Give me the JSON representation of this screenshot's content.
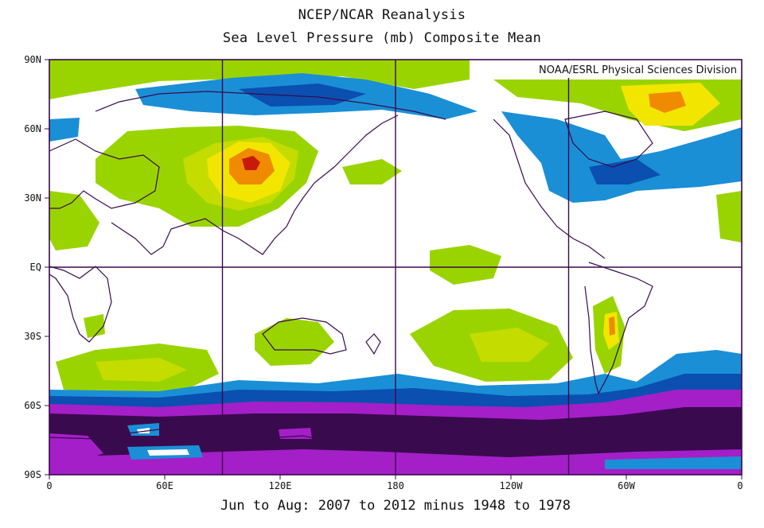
{
  "header": {
    "title": "NCEP/NCAR Reanalysis",
    "subtitle": "Sea Level Pressure (mb) Composite Mean"
  },
  "credit": "NOAA/ESRL Physical Sciences Division",
  "footer": "Jun to Aug: 2007 to 2012 minus 1948 to 1978",
  "axes": {
    "lat_ticks": [
      "90N",
      "60N",
      "30N",
      "EQ",
      "30S",
      "60S",
      "90S"
    ],
    "lon_ticks": [
      "0",
      "60E",
      "120E",
      "180",
      "120W",
      "60W",
      "0"
    ]
  },
  "colors": {
    "strong_negative": "#3a0a4e",
    "negative_purple": "#a41fc8",
    "negative_blue": "#1a8fd6",
    "positive_green": "#9ad400",
    "positive_yellow": "#f2e600",
    "positive_orange": "#f08a00",
    "strong_positive": "#c81a0a",
    "coastline": "#3a0a4e"
  }
}
